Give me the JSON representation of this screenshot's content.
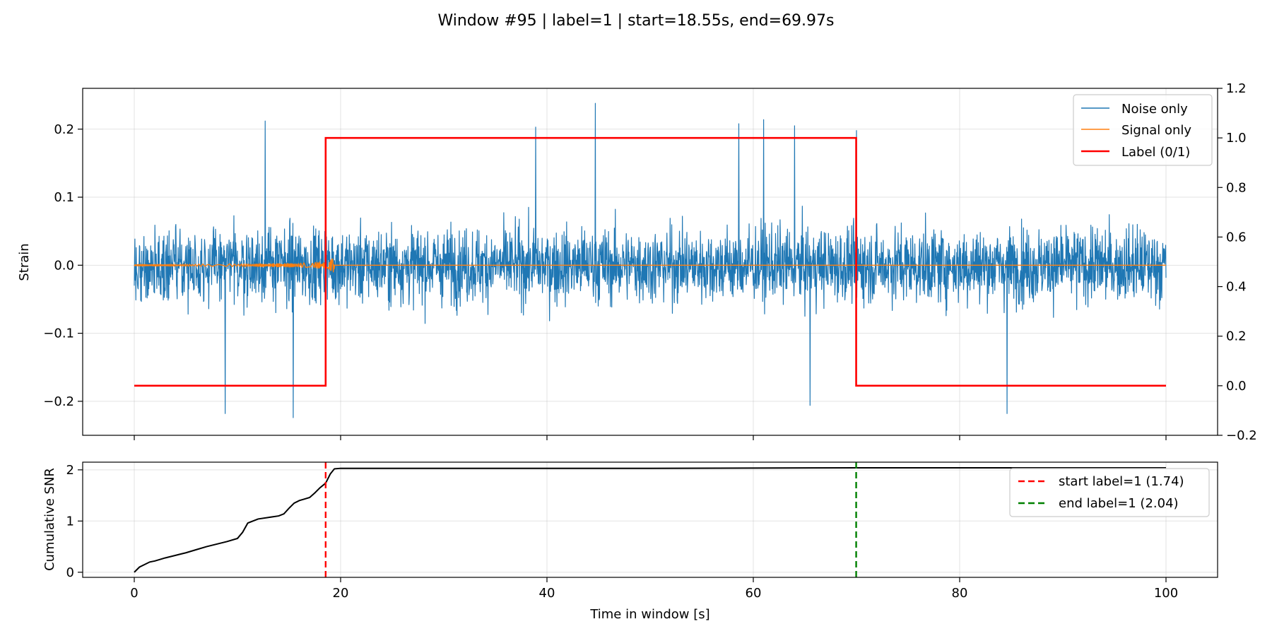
{
  "chart_data": [
    {
      "type": "line",
      "title": "Window #95 | label=1 | start=18.55s, end=69.97s",
      "ylabel": "Strain",
      "xlim": [
        -5,
        105
      ],
      "ylim": [
        -0.25,
        0.26
      ],
      "y2lim": [
        -0.2,
        1.2
      ],
      "x_ticks": [
        0,
        20,
        40,
        60,
        80,
        100
      ],
      "y_ticks": [
        -0.2,
        -0.1,
        0.0,
        0.1,
        0.2
      ],
      "y_tick_labels": [
        "−0.2",
        "−0.1",
        "0.0",
        "0.1",
        "0.2"
      ],
      "y2_ticks": [
        -0.2,
        0.0,
        0.2,
        0.4,
        0.6,
        0.8,
        1.0,
        1.2
      ],
      "y2_tick_labels": [
        "−0.2",
        "0.0",
        "0.2",
        "0.4",
        "0.6",
        "0.8",
        "1.0",
        "1.2"
      ],
      "grid": true,
      "legend_position": "top-right",
      "series": [
        {
          "name": "Noise only",
          "color": "#1f77b4",
          "kind": "noise",
          "x_range": [
            0,
            100
          ],
          "typical_amplitude": 0.11,
          "peak_values": [
            {
              "x": 12.7,
              "y": 0.212
            },
            {
              "x": 15.4,
              "y": -0.224
            },
            {
              "x": 8.8,
              "y": -0.218
            },
            {
              "x": 38.9,
              "y": 0.203
            },
            {
              "x": 44.7,
              "y": 0.238
            },
            {
              "x": 58.6,
              "y": 0.208
            },
            {
              "x": 61.0,
              "y": 0.214
            },
            {
              "x": 64.0,
              "y": 0.205
            },
            {
              "x": 65.5,
              "y": -0.206
            },
            {
              "x": 70.0,
              "y": 0.198
            },
            {
              "x": 84.6,
              "y": -0.218
            }
          ]
        },
        {
          "name": "Signal only",
          "color": "#ff7f0e",
          "kind": "chirp",
          "x_range": [
            0,
            100
          ],
          "merger_time": 19.4,
          "peak_amplitude": 0.012
        },
        {
          "name": "Label (0/1)",
          "color": "#ff0000",
          "axis": "right",
          "kind": "step",
          "points": [
            [
              0,
              0
            ],
            [
              18.55,
              0
            ],
            [
              18.55,
              1
            ],
            [
              69.97,
              1
            ],
            [
              69.97,
              0
            ],
            [
              100,
              0
            ]
          ]
        }
      ]
    },
    {
      "type": "line",
      "xlabel": "Time in window [s]",
      "ylabel": "Cumulative SNR",
      "xlim": [
        -5,
        105
      ],
      "ylim": [
        -0.1,
        2.15
      ],
      "x_ticks": [
        0,
        20,
        40,
        60,
        80,
        100
      ],
      "y_ticks": [
        0,
        1,
        2
      ],
      "grid": true,
      "legend_position": "top-right",
      "series": [
        {
          "name": "",
          "color": "#000000",
          "x": [
            0,
            0.5,
            1,
            1.5,
            2,
            3,
            4,
            5,
            6,
            7,
            8,
            9,
            10,
            10.5,
            11,
            11.5,
            12,
            13,
            14,
            14.5,
            15,
            15.5,
            16,
            16.5,
            17,
            17.5,
            18,
            18.55,
            19,
            19.4,
            20,
            30,
            50,
            70,
            100
          ],
          "values": [
            0.0,
            0.1,
            0.15,
            0.2,
            0.22,
            0.28,
            0.33,
            0.38,
            0.44,
            0.5,
            0.55,
            0.6,
            0.66,
            0.78,
            0.96,
            1.0,
            1.04,
            1.07,
            1.1,
            1.14,
            1.25,
            1.35,
            1.4,
            1.43,
            1.46,
            1.55,
            1.65,
            1.74,
            1.92,
            2.02,
            2.03,
            2.03,
            2.03,
            2.04,
            2.04
          ]
        },
        {
          "name": "start label=1 (1.74)",
          "color": "#ff0000",
          "style": "dashed",
          "kind": "vline",
          "x": 18.55
        },
        {
          "name": "end label=1 (2.04)",
          "color": "#008000",
          "style": "dashed",
          "kind": "vline",
          "x": 69.97
        }
      ]
    }
  ]
}
